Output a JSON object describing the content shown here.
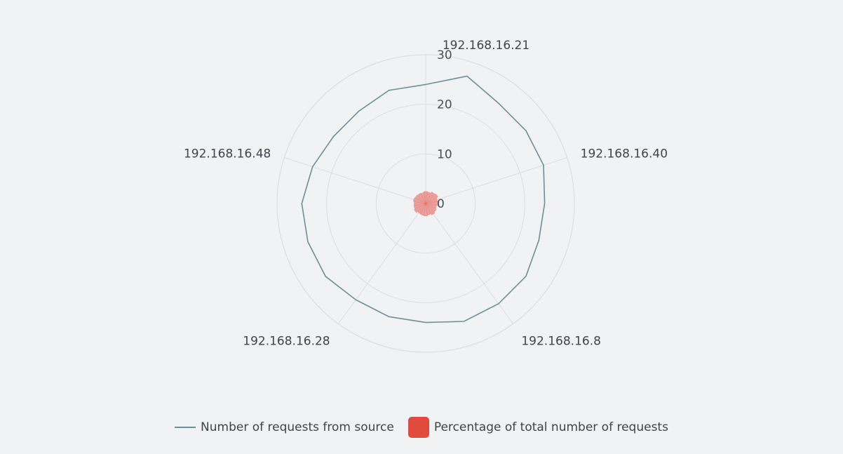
{
  "chart_data": {
    "type": "radar",
    "axis_ticks": [
      "0",
      "10",
      "20",
      "30"
    ],
    "r_max": 30,
    "spokes": [
      {
        "angle": 90,
        "label": "192.168.16.21"
      },
      {
        "angle": 18,
        "label": "192.168.16.40"
      },
      {
        "angle": -54,
        "label": "192.168.16.8"
      },
      {
        "angle": -126,
        "label": "192.168.16.28"
      },
      {
        "angle": 162,
        "label": "192.168.16.48"
      }
    ],
    "requests_series": {
      "name": "Number of requests from source",
      "values": [
        24,
        27,
        25,
        25,
        25,
        24,
        24,
        25,
        25,
        25,
        24,
        24,
        24,
        25,
        25,
        25,
        24,
        23,
        23,
        24
      ]
    },
    "percentage_series": {
      "name": "Percentage of total number of requests",
      "values": [
        2.5,
        2.8,
        3.0,
        2.6,
        2.7,
        2.4,
        2.6,
        2.8,
        2.5,
        2.7,
        2.6,
        2.5,
        2.8,
        2.6,
        2.5,
        2.7,
        2.6,
        2.5,
        2.4,
        2.6
      ]
    }
  },
  "colors": {
    "line": "#6b9097",
    "bar": "#e04b3e",
    "bar_fill": "#e9918a"
  },
  "legend": {
    "line_label": "Number of requests from source",
    "bar_label": "Percentage of total number of requests"
  }
}
